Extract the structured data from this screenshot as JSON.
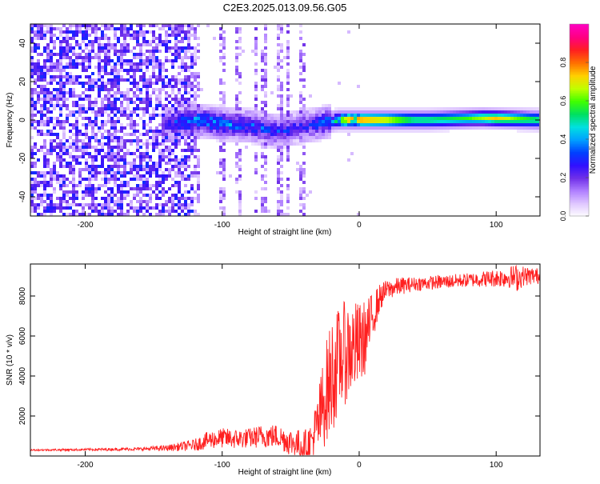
{
  "title": "C2E3.2025.013.09.56.G05",
  "chart_data": [
    {
      "type": "heatmap",
      "xlabel": "Height of straight line (km)",
      "ylabel": "Frequency (Hz)",
      "xlim": [
        -240,
        132
      ],
      "ylim": [
        -50,
        50
      ],
      "x_ticks": [
        -200,
        -100,
        0,
        100
      ],
      "y_ticks": [
        -40,
        -20,
        0,
        20,
        40
      ],
      "colorbar": {
        "label": "Normalized spectral amplitude",
        "range": [
          0.0,
          1.0
        ],
        "ticks": [
          0.0,
          0.2,
          0.4,
          0.6,
          0.8
        ],
        "tick_labels": [
          "0.0",
          "0.2",
          "0.4",
          "0.6",
          "0.8"
        ],
        "colormap": [
          "#ffffff",
          "#e0c8ff",
          "#b080ff",
          "#7030e8",
          "#3010ff",
          "#0040ff",
          "#00a0ff",
          "#00e0e0",
          "#00e060",
          "#40ff00",
          "#c0ff00",
          "#ffd000",
          "#ff7000",
          "#ff2020",
          "#ff0080",
          "#ff00c0"
        ]
      },
      "features": {
        "noise_region_x": [
          -240,
          -120
        ],
        "noise_amplitude": 0.25,
        "sparse_streaks_x": [
          -118,
          -100,
          -88,
          -75,
          -70,
          -58,
          -52,
          -42
        ],
        "signal_band_center": [
          [
            -140,
            -2
          ],
          [
            -120,
            0
          ],
          [
            -100,
            -2
          ],
          [
            -80,
            -3
          ],
          [
            -60,
            -6
          ],
          [
            -45,
            -4
          ],
          [
            -30,
            -2
          ],
          [
            -15,
            0
          ],
          [
            0,
            0
          ],
          [
            50,
            0
          ],
          [
            90,
            1
          ],
          [
            132,
            0
          ]
        ],
        "signal_peak_amplitude": [
          [
            -140,
            0.3
          ],
          [
            -120,
            0.45
          ],
          [
            -100,
            0.45
          ],
          [
            -80,
            0.4
          ],
          [
            -60,
            0.35
          ],
          [
            -40,
            0.3
          ],
          [
            -20,
            0.45
          ],
          [
            -10,
            0.85
          ],
          [
            0,
            0.9
          ],
          [
            20,
            0.8
          ],
          [
            40,
            0.6
          ],
          [
            80,
            0.6
          ],
          [
            100,
            0.75
          ],
          [
            132,
            0.6
          ]
        ]
      }
    },
    {
      "type": "line",
      "xlabel": "Height of straight line (km)",
      "ylabel": "SNR (10 * v/v)",
      "xlim": [
        -240,
        132
      ],
      "ylim": [
        0,
        9600
      ],
      "x_ticks": [
        -200,
        -100,
        0,
        100
      ],
      "y_ticks": [
        2000,
        4000,
        6000,
        8000
      ],
      "line_color": "#ff2020",
      "series": [
        {
          "x": [
            -240,
            -200,
            -160,
            -140,
            -120,
            -110,
            -100,
            -90,
            -80,
            -70,
            -60,
            -50,
            -40,
            -35,
            -30,
            -25,
            -20,
            -15,
            -10,
            -5,
            0,
            5,
            10,
            15,
            20,
            30,
            40,
            60,
            80,
            100,
            110,
            115,
            120,
            132
          ],
          "values": [
            300,
            320,
            350,
            400,
            550,
            800,
            900,
            850,
            900,
            1000,
            1000,
            700,
            500,
            700,
            1500,
            3000,
            4000,
            4800,
            5200,
            5400,
            5500,
            6000,
            7000,
            7900,
            8300,
            8500,
            8600,
            8700,
            8800,
            8900,
            8950,
            8900,
            9000,
            9000
          ],
          "noise_envelope": [
            40,
            60,
            80,
            150,
            300,
            450,
            500,
            500,
            500,
            600,
            600,
            700,
            800,
            1000,
            1800,
            2500,
            3000,
            2600,
            2600,
            2400,
            2200,
            1800,
            1200,
            700,
            500,
            450,
            350,
            350,
            350,
            450,
            550,
            700,
            500,
            400
          ]
        }
      ]
    }
  ]
}
